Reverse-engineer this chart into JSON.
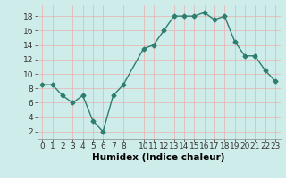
{
  "x": [
    0,
    1,
    2,
    3,
    4,
    5,
    6,
    7,
    8,
    10,
    11,
    12,
    13,
    14,
    15,
    16,
    17,
    18,
    19,
    20,
    21,
    22,
    23
  ],
  "y": [
    8.5,
    8.5,
    7.0,
    6.0,
    7.0,
    3.5,
    2.0,
    7.0,
    8.5,
    13.5,
    14.0,
    16.0,
    18.0,
    18.0,
    18.0,
    18.5,
    17.5,
    18.0,
    14.5,
    12.5,
    12.5,
    10.5,
    9.0
  ],
  "line_color": "#2e7d6e",
  "marker": "D",
  "marker_size": 2.5,
  "linewidth": 1.0,
  "bg_color": "#ceecea",
  "grid_color": "#e8b0b0",
  "xlabel": "Humidex (Indice chaleur)",
  "xlim": [
    -0.5,
    23.5
  ],
  "ylim": [
    1,
    19.5
  ],
  "xticks": [
    0,
    1,
    2,
    3,
    4,
    5,
    6,
    7,
    8,
    10,
    11,
    12,
    13,
    14,
    15,
    16,
    17,
    18,
    19,
    20,
    21,
    22,
    23
  ],
  "yticks": [
    2,
    4,
    6,
    8,
    10,
    12,
    14,
    16,
    18
  ],
  "xlabel_fontsize": 7.5,
  "tick_fontsize": 6.5
}
